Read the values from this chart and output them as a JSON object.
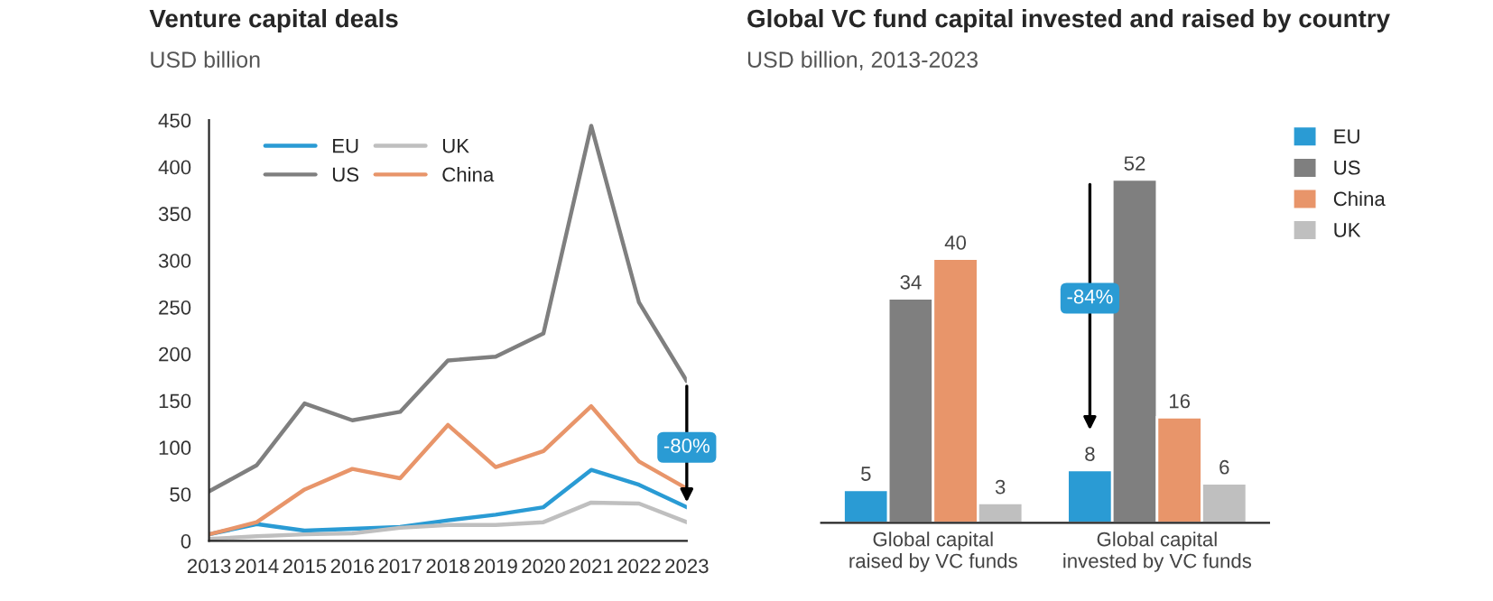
{
  "chart_data": [
    {
      "type": "line",
      "title": "Venture capital deals",
      "subtitle": "USD billion",
      "x": [
        2013,
        2014,
        2015,
        2016,
        2017,
        2018,
        2019,
        2020,
        2021,
        2022,
        2023
      ],
      "series": [
        {
          "name": "EU",
          "color": "#2a9bd4",
          "values": [
            7,
            18,
            11,
            13,
            15,
            22,
            28,
            36,
            76,
            60,
            36
          ]
        },
        {
          "name": "US",
          "color": "#7f7f7f",
          "values": [
            53,
            81,
            147,
            129,
            138,
            193,
            197,
            222,
            444,
            255,
            171
          ]
        },
        {
          "name": "UK",
          "color": "#bfbfbf",
          "values": [
            2,
            5,
            7,
            8,
            14,
            17,
            17,
            20,
            41,
            40,
            20
          ]
        },
        {
          "name": "China",
          "color": "#e8956a",
          "values": [
            7,
            20,
            55,
            77,
            67,
            124,
            79,
            96,
            144,
            85,
            56
          ]
        }
      ],
      "xlim": [
        2013,
        2023
      ],
      "xticks": [
        2013,
        2014,
        2015,
        2016,
        2017,
        2018,
        2019,
        2020,
        2021,
        2022,
        2023
      ],
      "ylim": [
        0,
        450
      ],
      "yticks": [
        0,
        50,
        100,
        150,
        200,
        250,
        300,
        350,
        400,
        450
      ],
      "grid": false,
      "legend": "top left",
      "annotations": [
        {
          "text": "-80%",
          "x": 2023,
          "y": 100
        }
      ]
    },
    {
      "type": "bar",
      "title": "Global VC fund capital invested and raised by country",
      "subtitle": "USD billion, 2013-2023",
      "categories": [
        "Global capital\nraised by VC funds",
        "Global capital\ninvested by VC funds"
      ],
      "series": [
        {
          "name": "EU",
          "color": "#2a9bd4",
          "values": [
            5,
            8
          ]
        },
        {
          "name": "US",
          "color": "#7f7f7f",
          "values": [
            34,
            52
          ]
        },
        {
          "name": "China",
          "color": "#e8956a",
          "values": [
            40,
            16
          ]
        },
        {
          "name": "UK",
          "color": "#bfbfbf",
          "values": [
            3,
            6
          ]
        }
      ],
      "data_labels": true,
      "grid": false,
      "legend": "top right",
      "tick_labels": "x",
      "annotations": [
        {
          "text": "-84%",
          "x": "Global capital\ninvested by VC funds",
          "y": 34
        }
      ]
    }
  ]
}
